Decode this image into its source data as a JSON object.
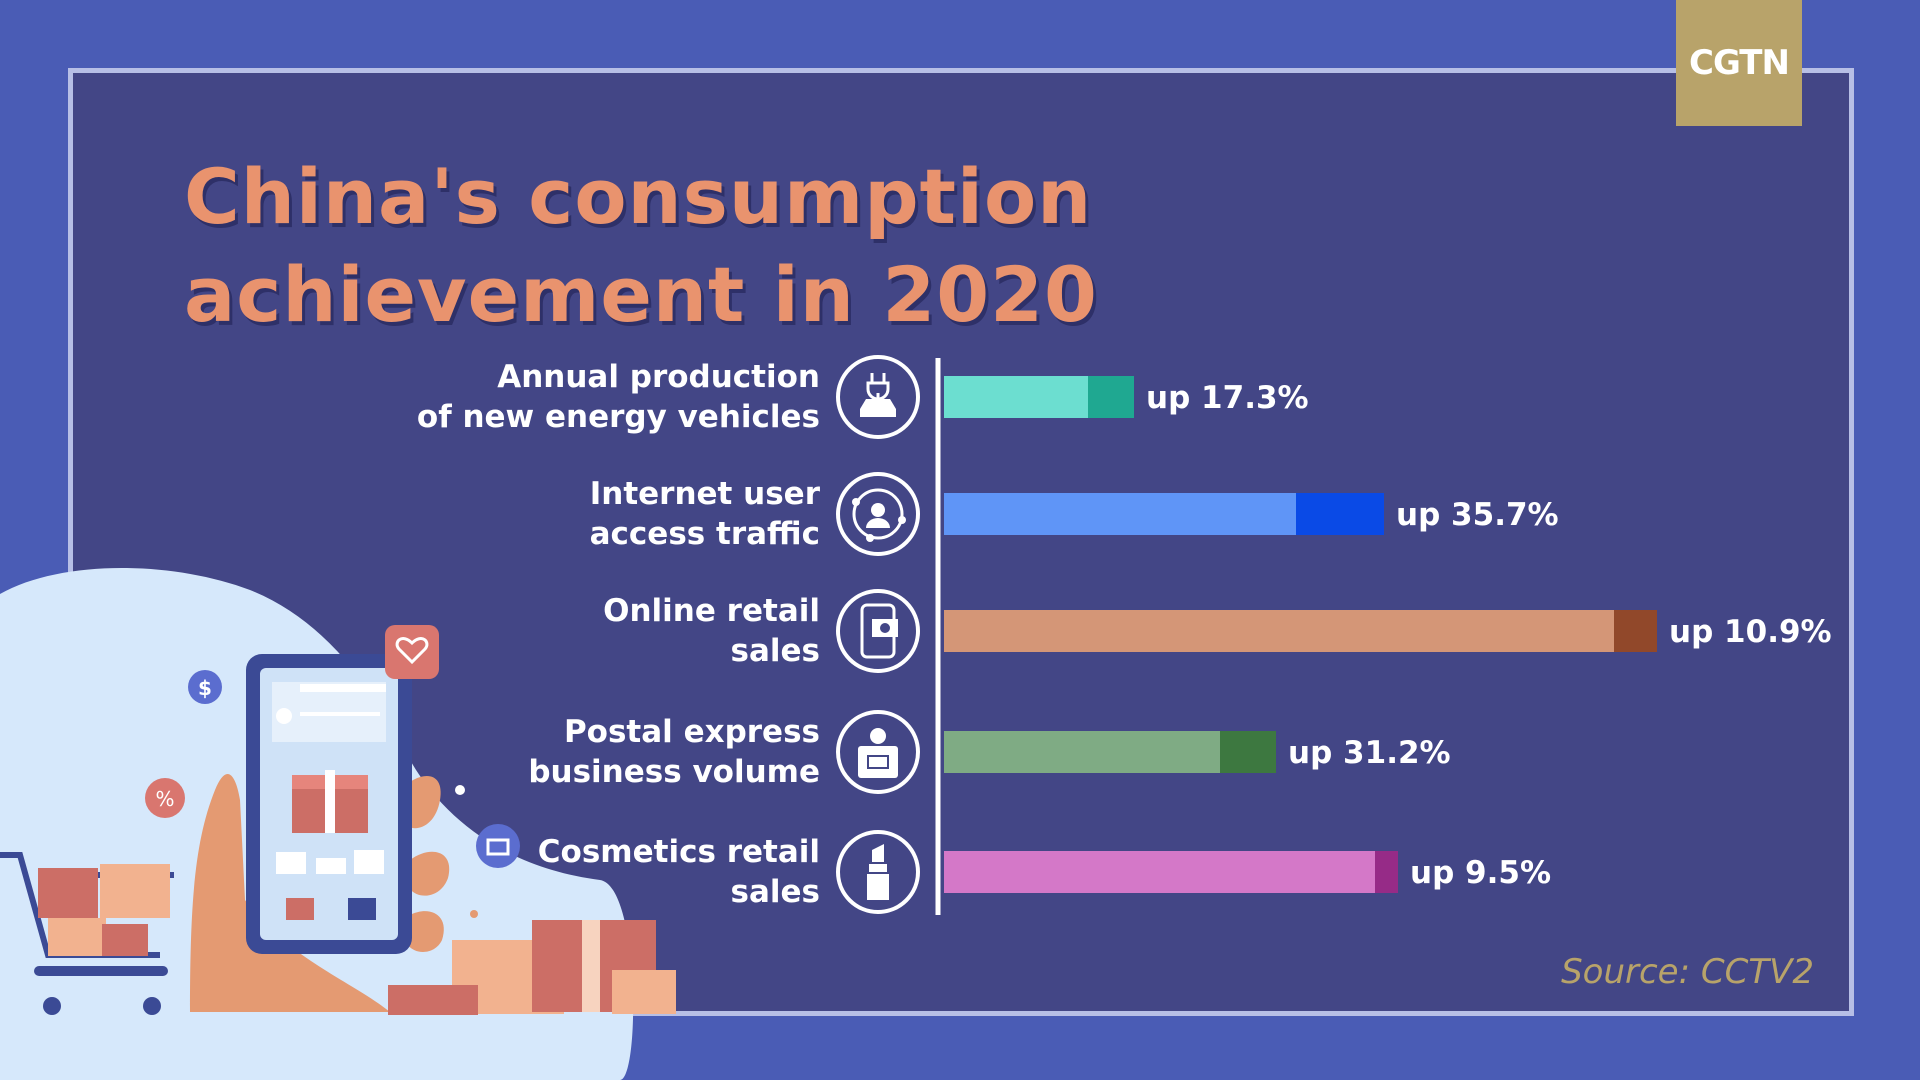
{
  "logo": "CGTN",
  "title": "China's consumption achievement in 2020",
  "source": "Source: CCTV2",
  "chart_data": {
    "type": "bar",
    "orientation": "horizontal",
    "title": "China's consumption achievement in 2020",
    "categories": [
      [
        "Annual production",
        "of new energy vehicles"
      ],
      [
        "Internet user",
        "access traffic"
      ],
      [
        "Online retail",
        "sales"
      ],
      [
        "Postal express",
        "business volume"
      ],
      [
        "Cosmetics retail",
        "sales"
      ]
    ],
    "values": [
      17.3,
      35.7,
      10.9,
      31.2,
      9.5
    ],
    "value_labels": [
      "up 17.3%",
      "up 35.7%",
      "up 10.9%",
      "up 31.2%",
      "up 9.5%"
    ],
    "icons": [
      "ev-charging-icon",
      "network-user-icon",
      "mobile-payment-icon",
      "courier-box-icon",
      "lipstick-icon"
    ],
    "colors": [
      {
        "light": "#6cded0",
        "dark": "#1fa891"
      },
      {
        "light": "#5f95f7",
        "dark": "#0a4ae6"
      },
      {
        "light": "#d49677",
        "dark": "#91482a"
      },
      {
        "light": "#7fab84",
        "dark": "#3d7840"
      },
      {
        "light": "#d478c8",
        "dark": "#962b87"
      }
    ],
    "grid": false,
    "legend": "none"
  }
}
